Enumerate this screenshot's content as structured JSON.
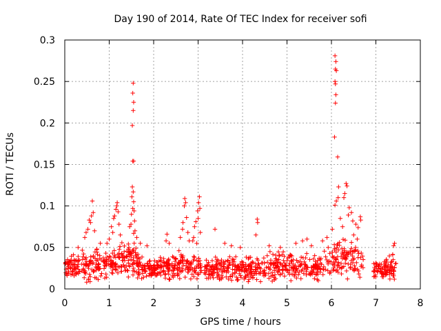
{
  "chart_data": {
    "type": "scatter",
    "title": "Day 190 of 2014, Rate Of TEC Index for receiver sofi",
    "xlabel": "GPS time / hours",
    "ylabel": "ROTI / TECUs",
    "xlim": [
      0,
      8
    ],
    "ylim": [
      0,
      0.3
    ],
    "x_ticks": [
      "0",
      "1",
      "2",
      "3",
      "4",
      "5",
      "6",
      "7",
      "8"
    ],
    "y_ticks": [
      "0",
      "0.05",
      "0.1",
      "0.15",
      "0.2",
      "0.25",
      "0.3"
    ],
    "grid": true,
    "marker": "plus",
    "color": "#ff0000",
    "band": [
      [
        0.0,
        0.012,
        0.038
      ],
      [
        0.25,
        0.01,
        0.042
      ],
      [
        0.5,
        0.008,
        0.05
      ],
      [
        0.75,
        0.01,
        0.048
      ],
      [
        1.0,
        0.012,
        0.045
      ],
      [
        1.25,
        0.012,
        0.055
      ],
      [
        1.5,
        0.015,
        0.06
      ],
      [
        1.75,
        0.012,
        0.04
      ],
      [
        2.0,
        0.012,
        0.035
      ],
      [
        2.25,
        0.012,
        0.04
      ],
      [
        2.5,
        0.01,
        0.045
      ],
      [
        2.75,
        0.012,
        0.05
      ],
      [
        3.0,
        0.012,
        0.04
      ],
      [
        3.25,
        0.01,
        0.038
      ],
      [
        3.5,
        0.01,
        0.04
      ],
      [
        3.75,
        0.008,
        0.042
      ],
      [
        4.0,
        0.008,
        0.04
      ],
      [
        4.25,
        0.008,
        0.042
      ],
      [
        4.5,
        0.008,
        0.045
      ],
      [
        4.75,
        0.01,
        0.045
      ],
      [
        5.0,
        0.01,
        0.045
      ],
      [
        5.25,
        0.01,
        0.045
      ],
      [
        5.5,
        0.01,
        0.042
      ],
      [
        5.75,
        0.01,
        0.045
      ],
      [
        6.0,
        0.012,
        0.06
      ],
      [
        6.25,
        0.012,
        0.06
      ],
      [
        6.5,
        0.012,
        0.055
      ],
      [
        6.7,
        0.012,
        0.05
      ],
      [
        6.95,
        0.01,
        0.035
      ],
      [
        7.2,
        0.01,
        0.035
      ],
      [
        7.45,
        0.012,
        0.05
      ]
    ],
    "band_gaps": [
      [
        6.72,
        6.94
      ]
    ],
    "band_x_range": [
      0.0,
      7.47
    ],
    "band_density": 1200,
    "outliers": [
      {
        "x": 1.54,
        "y": 0.248
      },
      {
        "x": 1.53,
        "y": 0.236
      },
      {
        "x": 1.55,
        "y": 0.225
      },
      {
        "x": 1.54,
        "y": 0.215
      },
      {
        "x": 1.52,
        "y": 0.197
      },
      {
        "x": 1.55,
        "y": 0.154
      },
      {
        "x": 1.53,
        "y": 0.154
      },
      {
        "x": 1.52,
        "y": 0.123
      },
      {
        "x": 1.54,
        "y": 0.117
      },
      {
        "x": 1.51,
        "y": 0.111
      },
      {
        "x": 1.55,
        "y": 0.105
      },
      {
        "x": 1.53,
        "y": 0.097
      },
      {
        "x": 1.56,
        "y": 0.094
      },
      {
        "x": 1.5,
        "y": 0.09
      },
      {
        "x": 1.57,
        "y": 0.082
      },
      {
        "x": 1.49,
        "y": 0.078
      },
      {
        "x": 1.58,
        "y": 0.07
      },
      {
        "x": 1.55,
        "y": 0.067
      },
      {
        "x": 1.46,
        "y": 0.075
      },
      {
        "x": 1.62,
        "y": 0.062
      },
      {
        "x": 6.08,
        "y": 0.281
      },
      {
        "x": 6.1,
        "y": 0.274
      },
      {
        "x": 6.09,
        "y": 0.265
      },
      {
        "x": 6.11,
        "y": 0.263
      },
      {
        "x": 6.08,
        "y": 0.25
      },
      {
        "x": 6.09,
        "y": 0.247
      },
      {
        "x": 6.1,
        "y": 0.234
      },
      {
        "x": 6.09,
        "y": 0.224
      },
      {
        "x": 6.07,
        "y": 0.183
      },
      {
        "x": 6.14,
        "y": 0.159
      },
      {
        "x": 6.16,
        "y": 0.123
      },
      {
        "x": 6.15,
        "y": 0.11
      },
      {
        "x": 6.11,
        "y": 0.106
      },
      {
        "x": 6.08,
        "y": 0.101
      },
      {
        "x": 6.33,
        "y": 0.127
      },
      {
        "x": 6.35,
        "y": 0.124
      },
      {
        "x": 6.3,
        "y": 0.115
      },
      {
        "x": 6.28,
        "y": 0.11
      },
      {
        "x": 6.4,
        "y": 0.098
      },
      {
        "x": 6.45,
        "y": 0.092
      },
      {
        "x": 6.38,
        "y": 0.089
      },
      {
        "x": 6.48,
        "y": 0.082
      },
      {
        "x": 6.55,
        "y": 0.078
      },
      {
        "x": 6.6,
        "y": 0.074
      },
      {
        "x": 6.65,
        "y": 0.087
      },
      {
        "x": 6.66,
        "y": 0.083
      },
      {
        "x": 6.02,
        "y": 0.072
      },
      {
        "x": 6.2,
        "y": 0.085
      },
      {
        "x": 6.25,
        "y": 0.075
      },
      {
        "x": 6.5,
        "y": 0.065
      },
      {
        "x": 6.58,
        "y": 0.06
      },
      {
        "x": 0.62,
        "y": 0.106
      },
      {
        "x": 0.64,
        "y": 0.092
      },
      {
        "x": 0.6,
        "y": 0.088
      },
      {
        "x": 0.55,
        "y": 0.083
      },
      {
        "x": 0.58,
        "y": 0.08
      },
      {
        "x": 0.52,
        "y": 0.072
      },
      {
        "x": 0.67,
        "y": 0.07
      },
      {
        "x": 0.48,
        "y": 0.068
      },
      {
        "x": 0.45,
        "y": 0.062
      },
      {
        "x": 1.18,
        "y": 0.104
      },
      {
        "x": 1.17,
        "y": 0.1
      },
      {
        "x": 1.15,
        "y": 0.096
      },
      {
        "x": 1.2,
        "y": 0.093
      },
      {
        "x": 1.12,
        "y": 0.088
      },
      {
        "x": 1.1,
        "y": 0.085
      },
      {
        "x": 1.22,
        "y": 0.078
      },
      {
        "x": 1.05,
        "y": 0.075
      },
      {
        "x": 1.08,
        "y": 0.068
      },
      {
        "x": 1.25,
        "y": 0.065
      },
      {
        "x": 1.0,
        "y": 0.06
      },
      {
        "x": 0.95,
        "y": 0.055
      },
      {
        "x": 2.7,
        "y": 0.109
      },
      {
        "x": 2.72,
        "y": 0.104
      },
      {
        "x": 2.69,
        "y": 0.1
      },
      {
        "x": 2.74,
        "y": 0.086
      },
      {
        "x": 2.66,
        "y": 0.08
      },
      {
        "x": 2.65,
        "y": 0.072
      },
      {
        "x": 2.77,
        "y": 0.068
      },
      {
        "x": 2.6,
        "y": 0.062
      },
      {
        "x": 2.8,
        "y": 0.058
      },
      {
        "x": 3.03,
        "y": 0.111
      },
      {
        "x": 3.01,
        "y": 0.104
      },
      {
        "x": 3.04,
        "y": 0.097
      },
      {
        "x": 2.99,
        "y": 0.094
      },
      {
        "x": 3.0,
        "y": 0.085
      },
      {
        "x": 2.95,
        "y": 0.081
      },
      {
        "x": 2.92,
        "y": 0.075
      },
      {
        "x": 3.05,
        "y": 0.068
      },
      {
        "x": 2.9,
        "y": 0.062
      },
      {
        "x": 2.88,
        "y": 0.058
      },
      {
        "x": 2.97,
        "y": 0.055
      },
      {
        "x": 3.38,
        "y": 0.072
      },
      {
        "x": 4.33,
        "y": 0.084
      },
      {
        "x": 4.34,
        "y": 0.08
      },
      {
        "x": 4.3,
        "y": 0.065
      },
      {
        "x": 2.3,
        "y": 0.066
      },
      {
        "x": 2.28,
        "y": 0.058
      },
      {
        "x": 2.35,
        "y": 0.055
      },
      {
        "x": 1.7,
        "y": 0.055
      },
      {
        "x": 1.85,
        "y": 0.052
      },
      {
        "x": 0.8,
        "y": 0.055
      },
      {
        "x": 0.3,
        "y": 0.05
      },
      {
        "x": 3.6,
        "y": 0.055
      },
      {
        "x": 3.75,
        "y": 0.052
      },
      {
        "x": 3.95,
        "y": 0.05
      },
      {
        "x": 4.6,
        "y": 0.052
      },
      {
        "x": 4.85,
        "y": 0.05
      },
      {
        "x": 5.2,
        "y": 0.055
      },
      {
        "x": 5.35,
        "y": 0.058
      },
      {
        "x": 5.45,
        "y": 0.06
      },
      {
        "x": 5.55,
        "y": 0.052
      },
      {
        "x": 5.8,
        "y": 0.058
      },
      {
        "x": 5.9,
        "y": 0.062
      },
      {
        "x": 7.42,
        "y": 0.055
      },
      {
        "x": 7.4,
        "y": 0.052
      }
    ]
  }
}
